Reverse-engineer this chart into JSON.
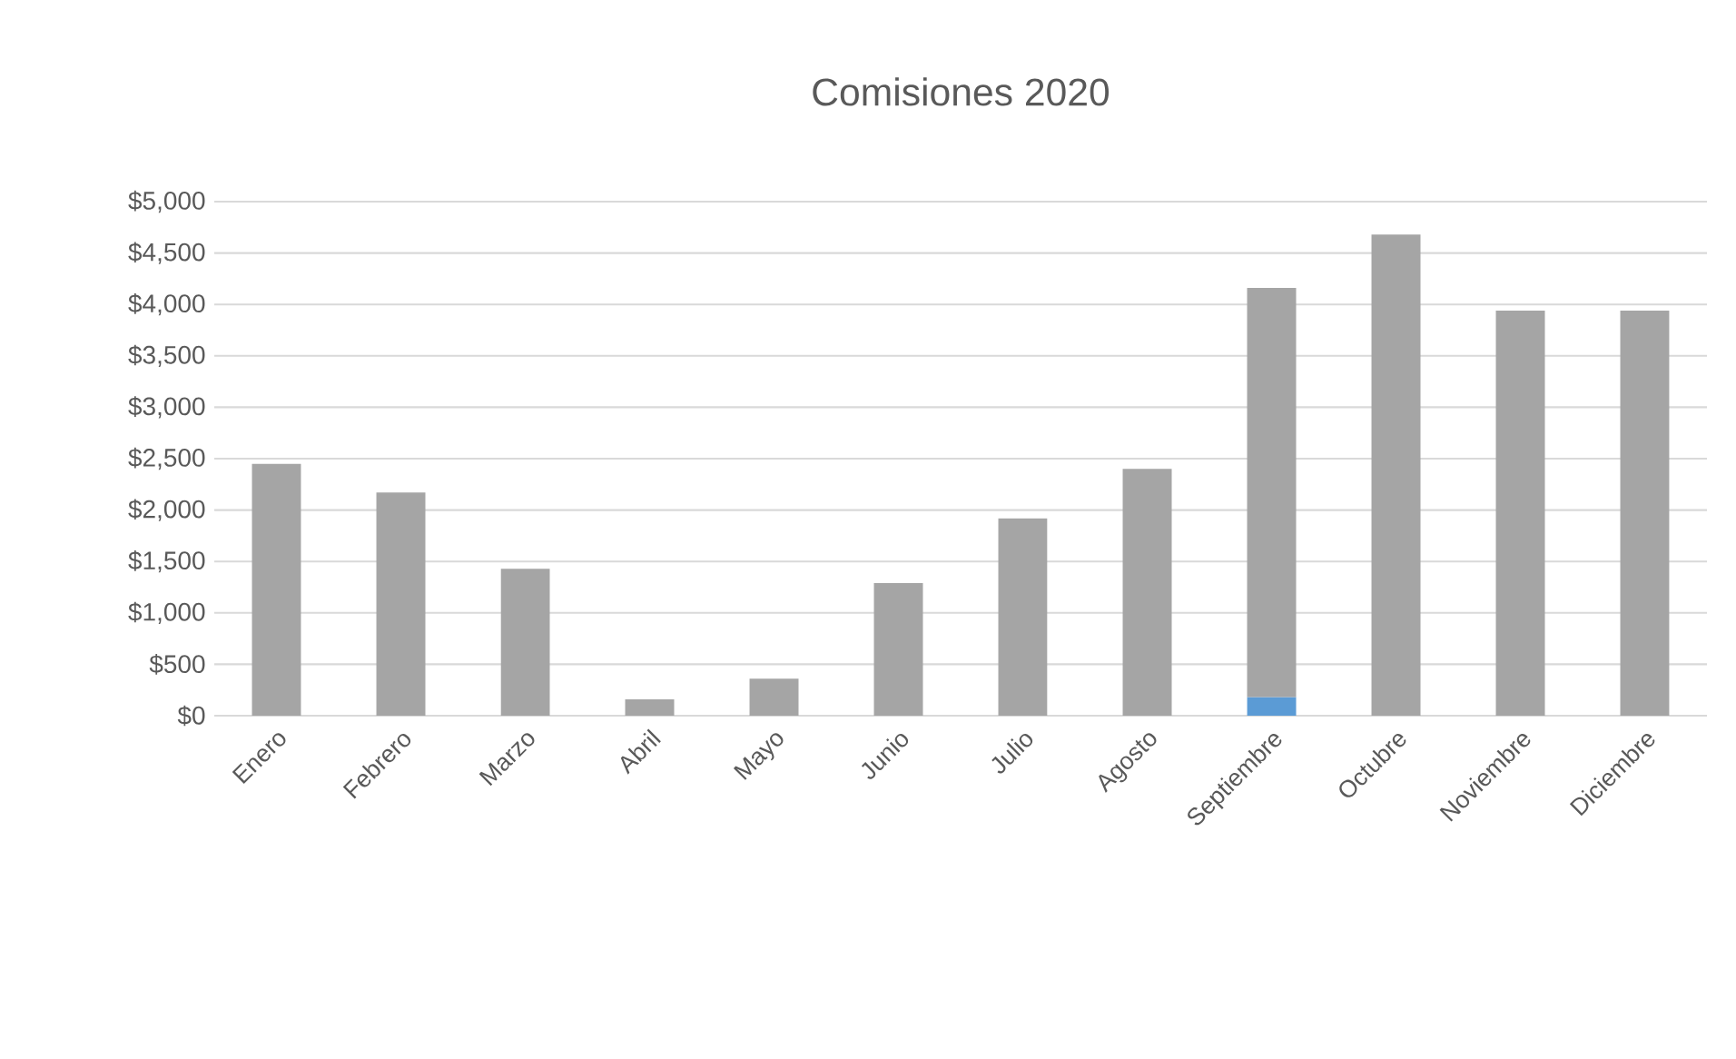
{
  "chart_data": {
    "type": "bar",
    "title": "Comisiones 2020",
    "categories": [
      "Enero",
      "Febrero",
      "Marzo",
      "Abril",
      "Mayo",
      "Junio",
      "Julio",
      "Agosto",
      "Septiembre",
      "Octubre",
      "Noviembre",
      "Diciembre"
    ],
    "stacked": true,
    "series": [
      {
        "color": "#5b9bd5",
        "values": [
          null,
          null,
          null,
          null,
          null,
          null,
          null,
          null,
          180,
          null,
          null,
          null
        ]
      },
      {
        "color": "#a5a5a5",
        "values": [
          2450,
          2170,
          1430,
          160,
          360,
          1290,
          1920,
          2400,
          3980,
          4680,
          3940,
          3940
        ]
      }
    ],
    "ylim": [
      0,
      5000
    ],
    "yticks": [
      {
        "value": 0,
        "label": "$0"
      },
      {
        "value": 500,
        "label": "$500"
      },
      {
        "value": 1000,
        "label": "$1,000"
      },
      {
        "value": 1500,
        "label": "$1,500"
      },
      {
        "value": 2000,
        "label": "$2,000"
      },
      {
        "value": 2500,
        "label": "$2,500"
      },
      {
        "value": 3000,
        "label": "$3,000"
      },
      {
        "value": 3500,
        "label": "$3,500"
      },
      {
        "value": 4000,
        "label": "$4,000"
      },
      {
        "value": 4500,
        "label": "$4,500"
      },
      {
        "value": 5000,
        "label": "$5,000"
      }
    ],
    "grid": "y"
  }
}
